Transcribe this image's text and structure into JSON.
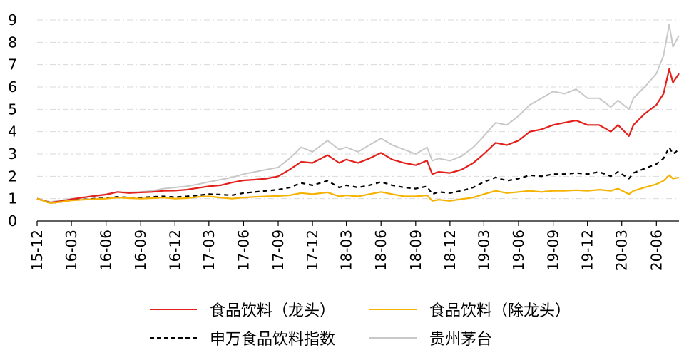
{
  "chart_data": {
    "type": "line",
    "title": "",
    "xlabel": "",
    "ylabel": "",
    "ylim": [
      0,
      9
    ],
    "yticks": [
      0,
      1,
      2,
      3,
      4,
      5,
      6,
      7,
      8,
      9
    ],
    "xticks": [
      "15-12",
      "16-03",
      "16-06",
      "16-09",
      "16-12",
      "17-03",
      "17-06",
      "17-09",
      "17-12",
      "18-03",
      "18-06",
      "18-09",
      "18-12",
      "19-03",
      "19-06",
      "19-09",
      "19-12",
      "20-03",
      "20-06"
    ],
    "grid": "horizontal dash-dot",
    "legend_position": "bottom",
    "colors": {
      "leader": "#e3201b",
      "ex_leader": "#f6b200",
      "sw_index": "#000000",
      "moutai": "#c8c8c8"
    },
    "series": [
      {
        "name": "食品饮料（龙头）",
        "key": "leader",
        "points": [
          [
            "2015-12-01",
            1.0
          ],
          [
            "2016-01-05",
            0.82
          ],
          [
            "2016-02-01",
            0.88
          ],
          [
            "2016-03-01",
            0.97
          ],
          [
            "2016-04-01",
            1.05
          ],
          [
            "2016-05-01",
            1.12
          ],
          [
            "2016-06-01",
            1.18
          ],
          [
            "2016-07-01",
            1.3
          ],
          [
            "2016-08-01",
            1.25
          ],
          [
            "2016-09-01",
            1.28
          ],
          [
            "2016-10-01",
            1.3
          ],
          [
            "2016-11-01",
            1.35
          ],
          [
            "2016-12-01",
            1.36
          ],
          [
            "2017-01-01",
            1.4
          ],
          [
            "2017-02-01",
            1.48
          ],
          [
            "2017-03-01",
            1.55
          ],
          [
            "2017-04-01",
            1.6
          ],
          [
            "2017-05-01",
            1.72
          ],
          [
            "2017-06-01",
            1.82
          ],
          [
            "2017-07-01",
            1.85
          ],
          [
            "2017-08-01",
            1.9
          ],
          [
            "2017-09-01",
            2.0
          ],
          [
            "2017-10-01",
            2.3
          ],
          [
            "2017-11-01",
            2.65
          ],
          [
            "2017-12-01",
            2.6
          ],
          [
            "2018-01-10",
            2.95
          ],
          [
            "2018-02-10",
            2.6
          ],
          [
            "2018-03-01",
            2.75
          ],
          [
            "2018-04-01",
            2.6
          ],
          [
            "2018-05-01",
            2.8
          ],
          [
            "2018-06-01",
            3.05
          ],
          [
            "2018-07-01",
            2.75
          ],
          [
            "2018-08-01",
            2.6
          ],
          [
            "2018-09-01",
            2.5
          ],
          [
            "2018-10-01",
            2.7
          ],
          [
            "2018-10-15",
            2.1
          ],
          [
            "2018-11-01",
            2.2
          ],
          [
            "2018-12-01",
            2.15
          ],
          [
            "2019-01-01",
            2.3
          ],
          [
            "2019-02-01",
            2.6
          ],
          [
            "2019-03-01",
            3.0
          ],
          [
            "2019-04-01",
            3.5
          ],
          [
            "2019-05-01",
            3.4
          ],
          [
            "2019-06-01",
            3.6
          ],
          [
            "2019-07-01",
            4.0
          ],
          [
            "2019-08-01",
            4.1
          ],
          [
            "2019-09-01",
            4.3
          ],
          [
            "2019-10-01",
            4.4
          ],
          [
            "2019-11-01",
            4.5
          ],
          [
            "2019-12-01",
            4.3
          ],
          [
            "2020-01-01",
            4.3
          ],
          [
            "2020-02-01",
            4.0
          ],
          [
            "2020-02-20",
            4.3
          ],
          [
            "2020-03-20",
            3.8
          ],
          [
            "2020-04-01",
            4.3
          ],
          [
            "2020-05-01",
            4.8
          ],
          [
            "2020-06-01",
            5.2
          ],
          [
            "2020-06-20",
            5.7
          ],
          [
            "2020-07-05",
            6.8
          ],
          [
            "2020-07-15",
            6.2
          ],
          [
            "2020-07-31",
            6.6
          ]
        ]
      },
      {
        "name": "食品饮料（除龙头）",
        "key": "ex_leader",
        "points": [
          [
            "2015-12-01",
            1.0
          ],
          [
            "2016-01-05",
            0.8
          ],
          [
            "2016-02-01",
            0.85
          ],
          [
            "2016-03-01",
            0.92
          ],
          [
            "2016-04-01",
            0.95
          ],
          [
            "2016-05-01",
            0.98
          ],
          [
            "2016-06-01",
            1.0
          ],
          [
            "2016-07-01",
            1.05
          ],
          [
            "2016-08-01",
            1.02
          ],
          [
            "2016-09-01",
            1.0
          ],
          [
            "2016-10-01",
            1.02
          ],
          [
            "2016-11-01",
            1.05
          ],
          [
            "2016-12-01",
            1.0
          ],
          [
            "2017-01-01",
            1.02
          ],
          [
            "2017-02-01",
            1.08
          ],
          [
            "2017-03-01",
            1.1
          ],
          [
            "2017-04-01",
            1.05
          ],
          [
            "2017-05-01",
            1.0
          ],
          [
            "2017-06-01",
            1.05
          ],
          [
            "2017-07-01",
            1.08
          ],
          [
            "2017-08-01",
            1.1
          ],
          [
            "2017-09-01",
            1.12
          ],
          [
            "2017-10-01",
            1.15
          ],
          [
            "2017-11-01",
            1.25
          ],
          [
            "2017-12-01",
            1.2
          ],
          [
            "2018-01-10",
            1.28
          ],
          [
            "2018-02-10",
            1.1
          ],
          [
            "2018-03-01",
            1.15
          ],
          [
            "2018-04-01",
            1.1
          ],
          [
            "2018-05-01",
            1.2
          ],
          [
            "2018-06-01",
            1.3
          ],
          [
            "2018-07-01",
            1.2
          ],
          [
            "2018-08-01",
            1.1
          ],
          [
            "2018-09-01",
            1.1
          ],
          [
            "2018-10-01",
            1.15
          ],
          [
            "2018-10-15",
            0.9
          ],
          [
            "2018-11-01",
            0.95
          ],
          [
            "2018-12-01",
            0.9
          ],
          [
            "2019-01-01",
            0.98
          ],
          [
            "2019-02-01",
            1.05
          ],
          [
            "2019-03-01",
            1.2
          ],
          [
            "2019-04-01",
            1.35
          ],
          [
            "2019-05-01",
            1.25
          ],
          [
            "2019-06-01",
            1.3
          ],
          [
            "2019-07-01",
            1.35
          ],
          [
            "2019-08-01",
            1.3
          ],
          [
            "2019-09-01",
            1.35
          ],
          [
            "2019-10-01",
            1.35
          ],
          [
            "2019-11-01",
            1.38
          ],
          [
            "2019-12-01",
            1.35
          ],
          [
            "2020-01-01",
            1.4
          ],
          [
            "2020-02-01",
            1.35
          ],
          [
            "2020-02-20",
            1.45
          ],
          [
            "2020-03-20",
            1.2
          ],
          [
            "2020-04-01",
            1.35
          ],
          [
            "2020-05-01",
            1.5
          ],
          [
            "2020-06-01",
            1.65
          ],
          [
            "2020-06-20",
            1.8
          ],
          [
            "2020-07-05",
            2.05
          ],
          [
            "2020-07-15",
            1.9
          ],
          [
            "2020-07-31",
            1.95
          ]
        ]
      },
      {
        "name": "申万食品饮料指数",
        "key": "sw_index",
        "points": [
          [
            "2015-12-01",
            1.0
          ],
          [
            "2016-01-05",
            0.8
          ],
          [
            "2016-02-01",
            0.85
          ],
          [
            "2016-03-01",
            0.93
          ],
          [
            "2016-04-01",
            0.96
          ],
          [
            "2016-05-01",
            1.0
          ],
          [
            "2016-06-01",
            1.02
          ],
          [
            "2016-07-01",
            1.08
          ],
          [
            "2016-08-01",
            1.05
          ],
          [
            "2016-09-01",
            1.05
          ],
          [
            "2016-10-01",
            1.08
          ],
          [
            "2016-11-01",
            1.1
          ],
          [
            "2016-12-01",
            1.07
          ],
          [
            "2017-01-01",
            1.1
          ],
          [
            "2017-02-01",
            1.15
          ],
          [
            "2017-03-01",
            1.2
          ],
          [
            "2017-04-01",
            1.18
          ],
          [
            "2017-05-01",
            1.15
          ],
          [
            "2017-06-01",
            1.25
          ],
          [
            "2017-07-01",
            1.3
          ],
          [
            "2017-08-01",
            1.35
          ],
          [
            "2017-09-01",
            1.4
          ],
          [
            "2017-10-01",
            1.5
          ],
          [
            "2017-11-01",
            1.7
          ],
          [
            "2017-12-01",
            1.6
          ],
          [
            "2018-01-10",
            1.8
          ],
          [
            "2018-02-10",
            1.5
          ],
          [
            "2018-03-01",
            1.6
          ],
          [
            "2018-04-01",
            1.5
          ],
          [
            "2018-05-01",
            1.6
          ],
          [
            "2018-06-01",
            1.75
          ],
          [
            "2018-07-01",
            1.6
          ],
          [
            "2018-08-01",
            1.5
          ],
          [
            "2018-09-01",
            1.45
          ],
          [
            "2018-10-01",
            1.55
          ],
          [
            "2018-10-15",
            1.2
          ],
          [
            "2018-11-01",
            1.3
          ],
          [
            "2018-12-01",
            1.25
          ],
          [
            "2019-01-01",
            1.35
          ],
          [
            "2019-02-01",
            1.5
          ],
          [
            "2019-03-01",
            1.75
          ],
          [
            "2019-04-01",
            1.95
          ],
          [
            "2019-05-01",
            1.8
          ],
          [
            "2019-06-01",
            1.9
          ],
          [
            "2019-07-01",
            2.05
          ],
          [
            "2019-08-01",
            2.0
          ],
          [
            "2019-09-01",
            2.1
          ],
          [
            "2019-10-01",
            2.1
          ],
          [
            "2019-11-01",
            2.15
          ],
          [
            "2019-12-01",
            2.1
          ],
          [
            "2020-01-01",
            2.2
          ],
          [
            "2020-02-01",
            2.0
          ],
          [
            "2020-02-20",
            2.2
          ],
          [
            "2020-03-20",
            1.9
          ],
          [
            "2020-04-01",
            2.15
          ],
          [
            "2020-05-01",
            2.35
          ],
          [
            "2020-06-01",
            2.55
          ],
          [
            "2020-06-20",
            2.8
          ],
          [
            "2020-07-05",
            3.3
          ],
          [
            "2020-07-15",
            3.0
          ],
          [
            "2020-07-31",
            3.2
          ]
        ]
      },
      {
        "name": "贵州茅台",
        "key": "moutai",
        "points": [
          [
            "2015-12-01",
            1.0
          ],
          [
            "2016-01-05",
            0.85
          ],
          [
            "2016-02-01",
            0.92
          ],
          [
            "2016-03-01",
            1.0
          ],
          [
            "2016-04-01",
            1.05
          ],
          [
            "2016-05-01",
            1.12
          ],
          [
            "2016-06-01",
            1.2
          ],
          [
            "2016-07-01",
            1.3
          ],
          [
            "2016-08-01",
            1.28
          ],
          [
            "2016-09-01",
            1.3
          ],
          [
            "2016-10-01",
            1.35
          ],
          [
            "2016-11-01",
            1.45
          ],
          [
            "2016-12-01",
            1.5
          ],
          [
            "2017-01-01",
            1.55
          ],
          [
            "2017-02-01",
            1.65
          ],
          [
            "2017-03-01",
            1.75
          ],
          [
            "2017-04-01",
            1.85
          ],
          [
            "2017-05-01",
            1.95
          ],
          [
            "2017-06-01",
            2.1
          ],
          [
            "2017-07-01",
            2.2
          ],
          [
            "2017-08-01",
            2.3
          ],
          [
            "2017-09-01",
            2.4
          ],
          [
            "2017-10-01",
            2.8
          ],
          [
            "2017-11-01",
            3.3
          ],
          [
            "2017-12-01",
            3.1
          ],
          [
            "2018-01-10",
            3.6
          ],
          [
            "2018-02-10",
            3.2
          ],
          [
            "2018-03-01",
            3.3
          ],
          [
            "2018-04-01",
            3.1
          ],
          [
            "2018-05-01",
            3.4
          ],
          [
            "2018-06-01",
            3.7
          ],
          [
            "2018-07-01",
            3.4
          ],
          [
            "2018-08-01",
            3.2
          ],
          [
            "2018-09-01",
            3.0
          ],
          [
            "2018-10-01",
            3.3
          ],
          [
            "2018-10-15",
            2.7
          ],
          [
            "2018-11-01",
            2.8
          ],
          [
            "2018-12-01",
            2.7
          ],
          [
            "2019-01-01",
            2.9
          ],
          [
            "2019-02-01",
            3.3
          ],
          [
            "2019-03-01",
            3.8
          ],
          [
            "2019-04-01",
            4.4
          ],
          [
            "2019-05-01",
            4.3
          ],
          [
            "2019-06-01",
            4.7
          ],
          [
            "2019-07-01",
            5.2
          ],
          [
            "2019-08-01",
            5.5
          ],
          [
            "2019-09-01",
            5.8
          ],
          [
            "2019-10-01",
            5.7
          ],
          [
            "2019-11-01",
            5.9
          ],
          [
            "2019-12-01",
            5.5
          ],
          [
            "2020-01-01",
            5.5
          ],
          [
            "2020-02-01",
            5.1
          ],
          [
            "2020-02-20",
            5.4
          ],
          [
            "2020-03-20",
            5.0
          ],
          [
            "2020-04-01",
            5.5
          ],
          [
            "2020-05-01",
            6.0
          ],
          [
            "2020-06-01",
            6.6
          ],
          [
            "2020-06-20",
            7.4
          ],
          [
            "2020-07-05",
            8.8
          ],
          [
            "2020-07-15",
            7.8
          ],
          [
            "2020-07-31",
            8.3
          ]
        ]
      }
    ]
  }
}
